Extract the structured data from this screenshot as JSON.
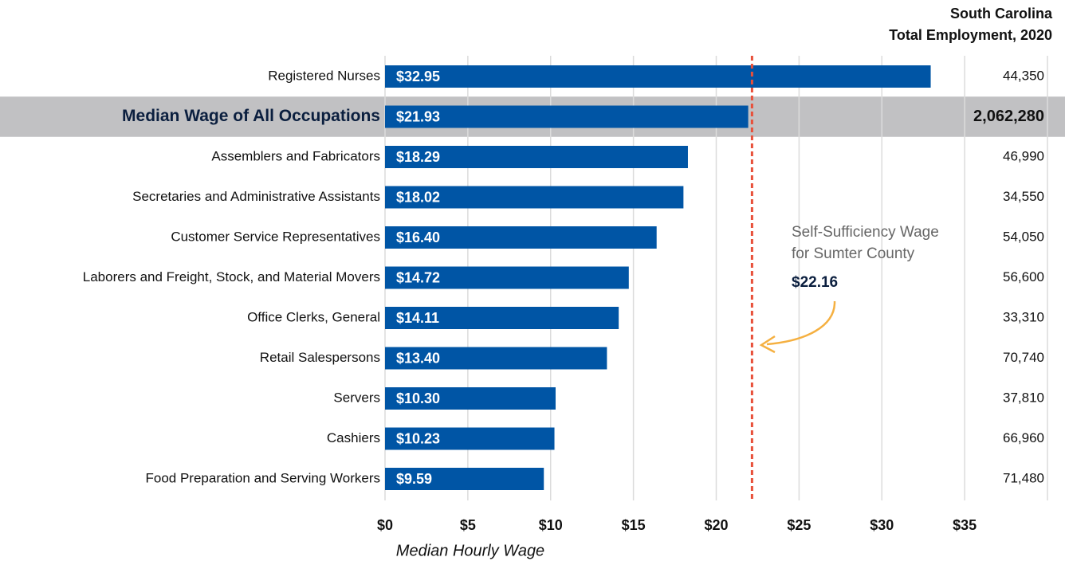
{
  "chart_data": {
    "type": "bar",
    "orientation": "horizontal",
    "categories": [
      "Registered Nurses",
      "Median Wage of All Occupations",
      "Assemblers and Fabricators",
      "Secretaries and Administrative Assistants",
      "Customer Service Representatives",
      "Laborers and Freight, Stock, and Material Movers",
      "Office Clerks, General",
      "Retail Salespersons",
      "Servers",
      "Cashiers",
      "Food Preparation and Serving Workers"
    ],
    "values": [
      32.95,
      21.93,
      18.29,
      18.02,
      16.4,
      14.72,
      14.11,
      13.4,
      10.3,
      10.23,
      9.59
    ],
    "value_labels": [
      "$32.95",
      "$21.93",
      "$18.29",
      "$18.02",
      "$16.40",
      "$14.72",
      "$14.11",
      "$13.40",
      "$10.30",
      "$10.23",
      "$9.59"
    ],
    "color": "#0055a5",
    "highlight_index": 1,
    "highlight_color": "#c1c1c3",
    "employment_title": [
      "South Carolina",
      "Total Employment, 2020"
    ],
    "employment": [
      44350,
      2062280,
      46990,
      34550,
      54050,
      56600,
      33310,
      70740,
      37810,
      66960,
      71480
    ],
    "employment_labels": [
      "44,350",
      "2,062,280",
      "46,990",
      "34,550",
      "54,050",
      "56,600",
      "33,310",
      "70,740",
      "37,810",
      "66,960",
      "71,480"
    ],
    "xlim": [
      0,
      40
    ],
    "xticks": [
      {
        "value": 0,
        "label": "$0"
      },
      {
        "value": 5,
        "label": "$5"
      },
      {
        "value": 10,
        "label": "$10"
      },
      {
        "value": 15,
        "label": "$15"
      },
      {
        "value": 20,
        "label": "$20"
      },
      {
        "value": 25,
        "label": "$25"
      },
      {
        "value": 30,
        "label": "$30"
      },
      {
        "value": 35,
        "label": "$35"
      }
    ],
    "x_label": "Median Hourly Wage",
    "grid": true,
    "reference_line": {
      "value": 22.16,
      "label": "$22.16",
      "text": [
        "Self-Sufficiency Wage",
        "for Sumter County"
      ],
      "color": "#e8503a"
    },
    "arrow_color": "#f5b041"
  }
}
